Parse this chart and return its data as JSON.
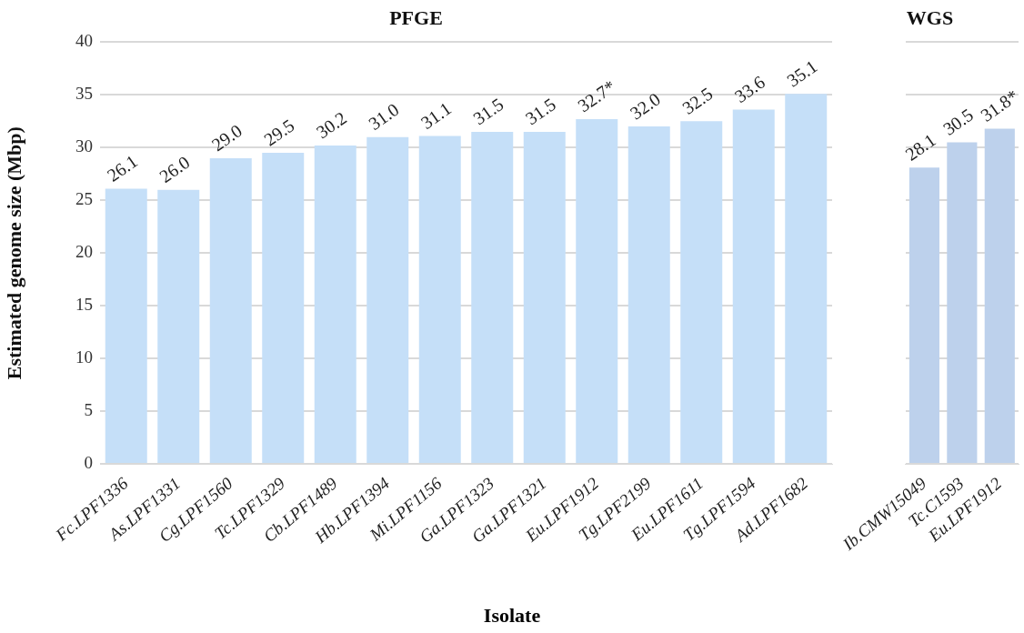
{
  "chart_data": [
    {
      "type": "bar",
      "title": "PFGE",
      "xlabel": "Isolate",
      "ylabel": "Estimated genome size (Mbp)",
      "categories": [
        "Fc.LPF1336",
        "As.LPF1331",
        "Cg.LPF1560",
        "Tc.LPF1329",
        "Cb.LPF1489",
        "Hb.LPF1394",
        "Mi.LPF1156",
        "Ga.LPF1323",
        "Ga.LPF1321",
        "Eu.LPF1912",
        "Tg.LPF2199",
        "Eu.LPF1611",
        "Tg.LPF1594",
        "Ad.LPF1682"
      ],
      "values": [
        26.1,
        26.0,
        29.0,
        29.5,
        30.2,
        31.0,
        31.1,
        31.5,
        31.5,
        32.7,
        32.0,
        32.5,
        33.6,
        35.1
      ],
      "value_labels": [
        "26.1",
        "26.0",
        "29.0",
        "29.5",
        "30.2",
        "31.0",
        "31.1",
        "31.5",
        "31.5",
        "32.7*",
        "32.0",
        "32.5",
        "33.6",
        "35.1"
      ],
      "color": "#c5dff8",
      "ylim": [
        0,
        40
      ],
      "yticks": [
        0,
        5,
        10,
        15,
        20,
        25,
        30,
        35,
        40
      ],
      "grid": "y",
      "legend": false
    },
    {
      "type": "bar",
      "title": "WGS",
      "categories": [
        "Ib.CMW15049",
        "Tc.C1593",
        "Eu.LPF1912"
      ],
      "values": [
        28.1,
        30.5,
        31.8
      ],
      "value_labels": [
        "28.1",
        "30.5",
        "31.8*"
      ],
      "color": "#bdd1ec",
      "ylim": [
        0,
        40
      ],
      "yticks": [
        0,
        5,
        10,
        15,
        20,
        25,
        30,
        35,
        40
      ],
      "grid": "y",
      "legend": false,
      "tick_labels": "x"
    }
  ]
}
